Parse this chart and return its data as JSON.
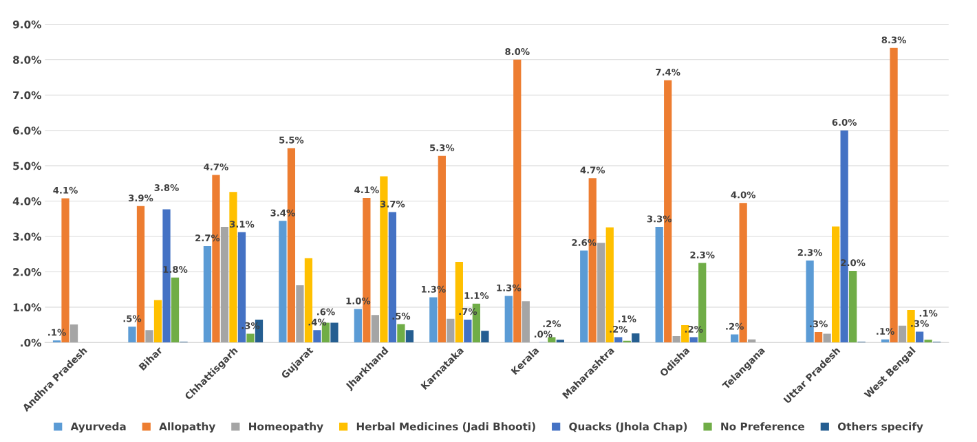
{
  "chart_data": {
    "type": "bar",
    "categories": [
      "Andhra Pradesh",
      "Bihar",
      "Chhattisgarh",
      "Gujarat",
      "Jharkhand",
      "Karnataka",
      "Kerala",
      "Maharashtra",
      "Odisha",
      "Telangana",
      "Uttar Pradesh",
      "West Bengal"
    ],
    "series": [
      {
        "name": "Ayurveda",
        "color": "#5b9bd5",
        "values": [
          0.06,
          0.45,
          2.73,
          3.44,
          0.95,
          1.28,
          1.32,
          2.6,
          3.27,
          0.23,
          2.32,
          0.09
        ],
        "value_labels": [
          ".1%",
          ".5%",
          "2.7%",
          "3.4%",
          "1.0%",
          "1.3%",
          "1.3%",
          "2.6%",
          "3.3%",
          ".2%",
          "2.3%",
          ".1%"
        ]
      },
      {
        "name": "Allopathy",
        "color": "#ed7d31",
        "values": [
          4.08,
          3.86,
          4.74,
          5.5,
          4.09,
          5.28,
          8.0,
          4.65,
          7.42,
          3.95,
          0.3,
          8.33
        ],
        "value_labels": [
          "4.1%",
          "3.9%",
          "4.7%",
          "5.5%",
          "4.1%",
          "5.3%",
          "8.0%",
          "4.7%",
          "7.4%",
          "4.0%",
          ".3%",
          "8.3%"
        ]
      },
      {
        "name": "Homeopathy",
        "color": "#a5a5a5",
        "values": [
          0.51,
          0.35,
          3.27,
          1.62,
          0.78,
          0.67,
          1.17,
          2.82,
          0.18,
          0.09,
          0.25,
          0.48
        ]
      },
      {
        "name": "Herbal Medicines (Jadi Bhooti)",
        "color": "#ffc000",
        "values": [
          0,
          1.2,
          4.26,
          2.39,
          4.7,
          2.28,
          0,
          3.26,
          0.49,
          0,
          3.28,
          0.92
        ]
      },
      {
        "name": "Quacks (Jhola Chap)",
        "color": "#4472c4",
        "values": [
          0,
          3.77,
          3.12,
          0.35,
          3.69,
          0.65,
          0.01,
          0.15,
          0.15,
          0,
          6.0,
          0.31
        ],
        "value_labels": [
          null,
          "3.8%",
          "3.1%",
          ".4%",
          "3.7%",
          ".7%",
          ".0%",
          ".2%",
          ".2%",
          null,
          "6.0%",
          ".3%"
        ]
      },
      {
        "name": "No Preference",
        "color": "#70ad47",
        "values": [
          0,
          1.84,
          0.25,
          0.56,
          0.52,
          1.1,
          0.15,
          0.05,
          2.25,
          0,
          2.03,
          0.08
        ],
        "value_labels": [
          null,
          "1.8%",
          ".3%",
          ".6%",
          ".5%",
          "1.1%",
          ".2%",
          ".1%",
          "2.3%",
          null,
          "2.0%",
          ".1%"
        ]
      },
      {
        "name": "Others specify",
        "color": "#255e91",
        "values": [
          0,
          0.02,
          0.65,
          0.56,
          0.35,
          0.33,
          0.08,
          0.26,
          0,
          0,
          0.02,
          0.02
        ]
      }
    ],
    "ylim": [
      0,
      9
    ],
    "yticks": [
      {
        "value": 0,
        "label": ".0%"
      },
      {
        "value": 1,
        "label": "1.0%"
      },
      {
        "value": 2,
        "label": "2.0%"
      },
      {
        "value": 3,
        "label": "3.0%"
      },
      {
        "value": 4,
        "label": "4.0%"
      },
      {
        "value": 5,
        "label": "5.0%"
      },
      {
        "value": 6,
        "label": "6.0%"
      },
      {
        "value": 7,
        "label": "7.0%"
      },
      {
        "value": 8,
        "label": "8.0%"
      },
      {
        "value": 9,
        "label": "9.0%"
      }
    ],
    "grid": "y",
    "legend": "bottom"
  }
}
